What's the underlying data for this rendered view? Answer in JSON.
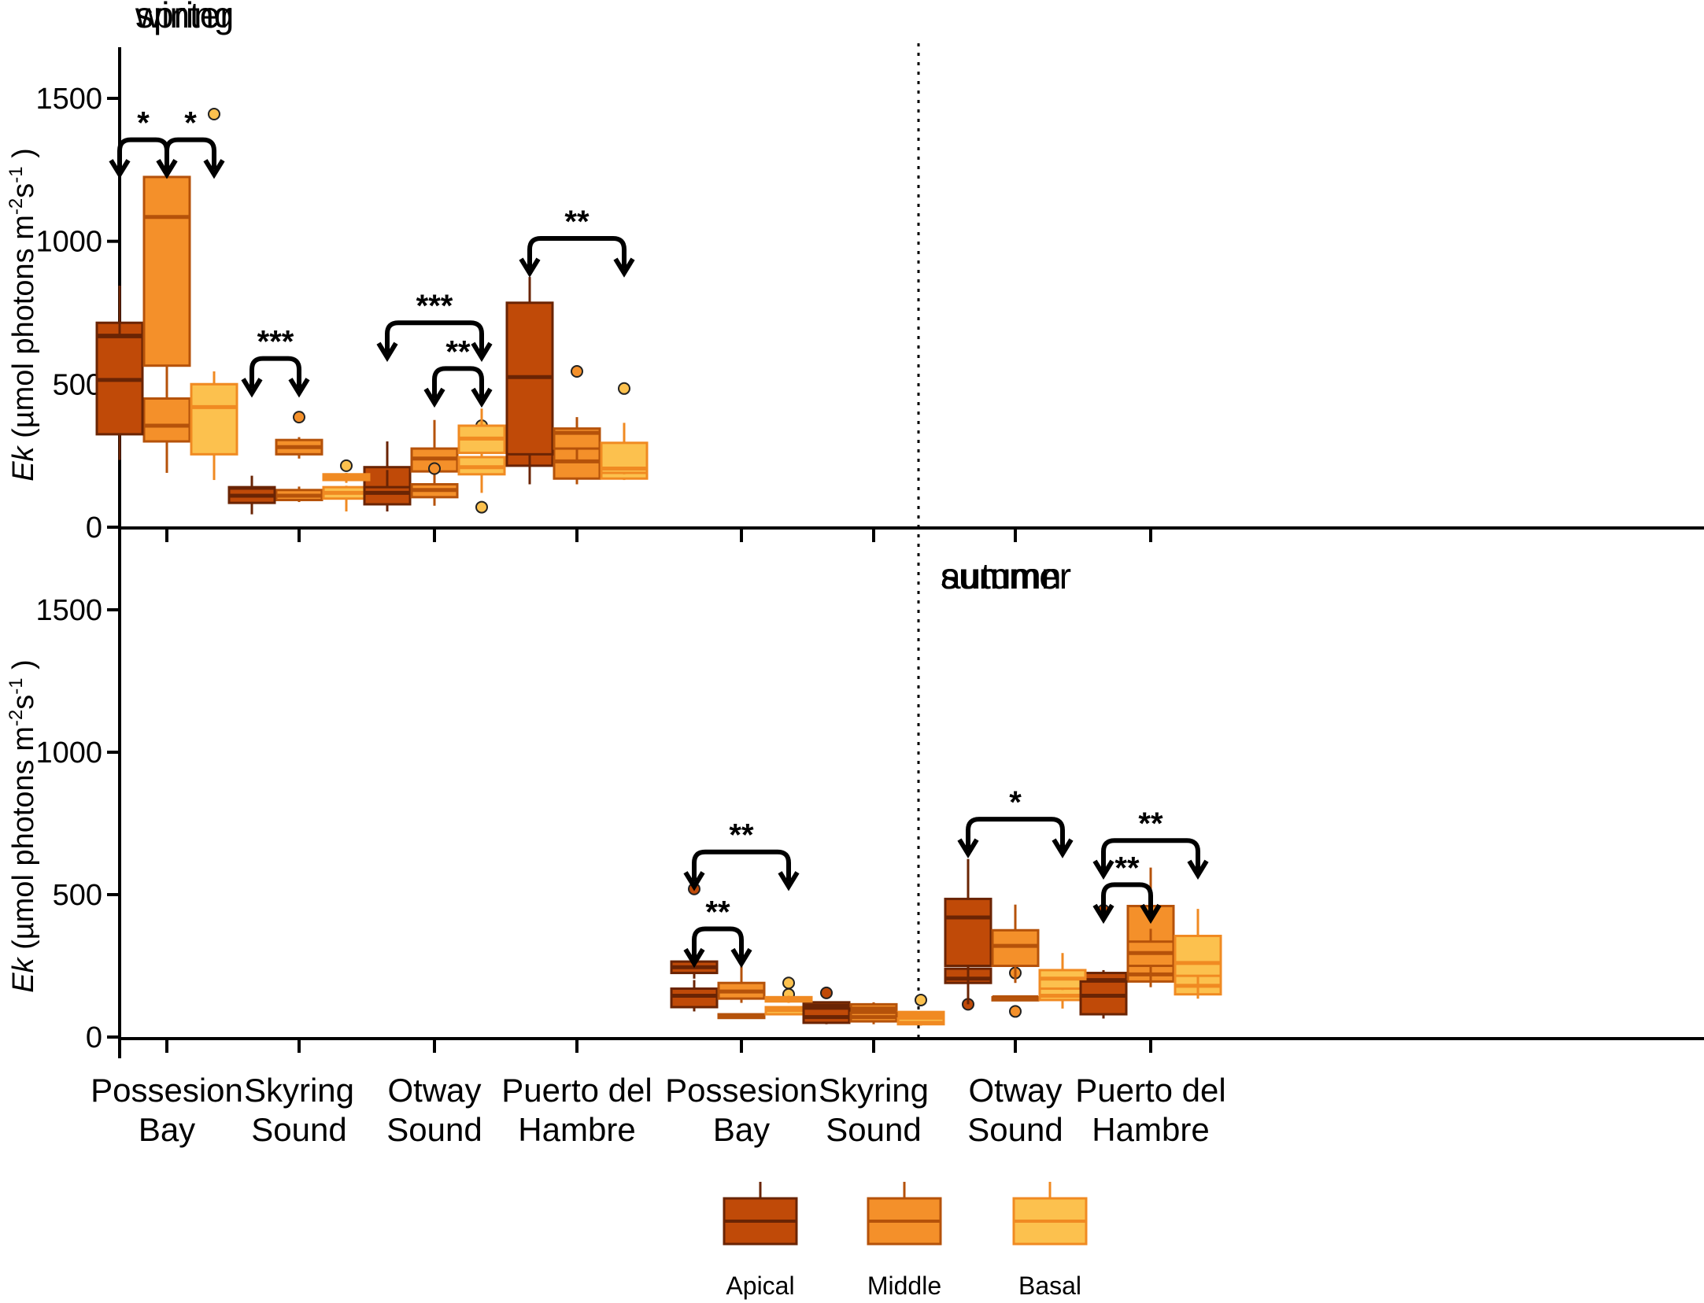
{
  "chart_data": {
    "type": "box",
    "ylabel_italic": "Ek",
    "ylabel_unit": "(µmol photons m",
    "ylabel_sup1": "-2",
    "ylabel_mid": "s",
    "ylabel_sup2": "-1",
    "ylabel_close": ")",
    "ylim": [
      0,
      1650
    ],
    "yticks": [
      0,
      500,
      1000,
      1500
    ],
    "ytick_labels": [
      "0",
      "500",
      "1000",
      "1500"
    ],
    "locations": [
      "Possesion Bay",
      "Skyring Sound",
      "Otway Sound",
      "Puerto del Hambre"
    ],
    "location_lines": [
      [
        "Possesion",
        "Bay"
      ],
      [
        "Skyring",
        "Sound"
      ],
      [
        "Otway",
        "Sound"
      ],
      [
        "Puerto del",
        "Hambre"
      ]
    ],
    "legend": [
      {
        "name": "Apical",
        "color": "#c04a08",
        "stroke": "#6a2404"
      },
      {
        "name": "Middle",
        "color": "#f4902a",
        "stroke": "#b5520a"
      },
      {
        "name": "Basal",
        "color": "#fcc14e",
        "stroke": "#f08a22"
      }
    ],
    "panels": [
      {
        "season": "winter",
        "groups": [
          [
            {
              "min": 355,
              "q1": 485,
              "median": 670,
              "q3": 715,
              "max": 780,
              "outliers": []
            },
            {
              "min": 190,
              "q1": 300,
              "median": 355,
              "q3": 450,
              "max": 555,
              "outliers": []
            },
            {
              "min": 230,
              "q1": 380,
              "median": 480,
              "q3": 500,
              "max": 510,
              "outliers": []
            }
          ],
          [
            {
              "min": 112,
              "q1": 115,
              "median": 125,
              "q3": 140,
              "max": 142,
              "outliers": []
            },
            {
              "min": 88,
              "q1": 95,
              "median": 110,
              "q3": 130,
              "max": 142,
              "outliers": []
            },
            {
              "min": 55,
              "q1": 100,
              "median": 120,
              "q3": 140,
              "max": 145,
              "outliers": []
            }
          ],
          [
            {
              "min": 110,
              "q1": 110,
              "median": 120,
              "q3": 210,
              "max": 300,
              "outliers": []
            },
            {
              "min": 155,
              "q1": 195,
              "median": 240,
              "q3": 275,
              "max": 375,
              "outliers": []
            },
            {
              "min": 120,
              "q1": 185,
              "median": 210,
              "q3": 245,
              "max": 265,
              "outliers": [
                355,
                70
              ]
            }
          ],
          [
            {
              "min": 165,
              "q1": 215,
              "median": 280,
              "q3": 440,
              "max": 470,
              "outliers": []
            },
            {
              "min": 150,
              "q1": 170,
              "median": 230,
              "q3": 315,
              "max": 385,
              "outliers": []
            },
            {
              "min": 165,
              "q1": 170,
              "median": 220,
              "q3": 290,
              "max": 300,
              "outliers": []
            }
          ]
        ],
        "significance": []
      },
      {
        "season": "autumn",
        "groups": [
          [
            {
              "min": 90,
              "q1": 105,
              "median": 145,
              "q3": 170,
              "max": 200,
              "outliers": []
            },
            {
              "min": 65,
              "q1": 67,
              "median": 72,
              "q3": 80,
              "max": 82,
              "outliers": []
            },
            {
              "min": 78,
              "q1": 80,
              "median": 95,
              "q3": 105,
              "max": 108,
              "outliers": [
                150
              ]
            }
          ],
          [
            {
              "min": 92,
              "q1": 95,
              "median": 110,
              "q3": 122,
              "max": 125,
              "outliers": [
                155
              ]
            },
            {
              "min": 88,
              "q1": 92,
              "median": 100,
              "q3": 115,
              "max": 122,
              "outliers": []
            },
            {
              "min": 62,
              "q1": 68,
              "median": 78,
              "q3": 88,
              "max": 90,
              "outliers": [
                130
              ]
            }
          ],
          [
            {
              "min": 190,
              "q1": 190,
              "median": 205,
              "q3": 240,
              "max": 265,
              "outliers": [
                380,
                115
              ]
            },
            {
              "min": 140,
              "q1": 140,
              "median": 140,
              "q3": 140,
              "max": 140,
              "outliers": [
                225,
                90
              ]
            },
            {
              "min": 100,
              "q1": 130,
              "median": 145,
              "q3": 175,
              "max": 205,
              "outliers": []
            }
          ],
          [
            {
              "min": 100,
              "q1": 130,
              "median": 200,
              "q3": 225,
              "max": 235,
              "outliers": [
                445
              ]
            },
            {
              "min": 175,
              "q1": 195,
              "median": 220,
              "q3": 460,
              "max": 595,
              "outliers": []
            },
            {
              "min": 135,
              "q1": 150,
              "median": 180,
              "q3": 275,
              "max": 450,
              "outliers": []
            }
          ]
        ],
        "significance": [
          {
            "group": 0,
            "from": 0,
            "to": 1,
            "label": "**",
            "level": 380
          }
        ]
      },
      {
        "season": "spring",
        "groups": [
          [
            {
              "min": 235,
              "q1": 325,
              "median": 515,
              "q3": 665,
              "max": 845,
              "outliers": []
            },
            {
              "min": 495,
              "q1": 565,
              "median": 1085,
              "q3": 1225,
              "max": 1235,
              "outliers": []
            },
            {
              "min": 165,
              "q1": 255,
              "median": 420,
              "q3": 500,
              "max": 545,
              "outliers": [
                1445
              ]
            }
          ],
          [
            {
              "min": 45,
              "q1": 85,
              "median": 110,
              "q3": 135,
              "max": 180,
              "outliers": []
            },
            {
              "min": 240,
              "q1": 255,
              "median": 280,
              "q3": 305,
              "max": 315,
              "outliers": [
                385
              ]
            },
            {
              "min": 155,
              "q1": 165,
              "median": 175,
              "q3": 185,
              "max": 190,
              "outliers": [
                215
              ]
            }
          ],
          [
            {
              "min": 55,
              "q1": 80,
              "median": 120,
              "q3": 140,
              "max": 200,
              "outliers": []
            },
            {
              "min": 75,
              "q1": 105,
              "median": 130,
              "q3": 150,
              "max": 165,
              "outliers": [
                205
              ]
            },
            {
              "min": 250,
              "q1": 260,
              "median": 310,
              "q3": 355,
              "max": 415,
              "outliers": []
            }
          ],
          [
            {
              "min": 150,
              "q1": 255,
              "median": 525,
              "q3": 785,
              "max": 875,
              "outliers": []
            },
            {
              "min": 225,
              "q1": 275,
              "median": 330,
              "q3": 345,
              "max": 350,
              "outliers": [
                545
              ]
            },
            {
              "min": 185,
              "q1": 190,
              "median": 205,
              "q3": 295,
              "max": 365,
              "outliers": [
                485
              ]
            }
          ]
        ],
        "significance": [
          {
            "group": 0,
            "from": 0,
            "to": 1,
            "label": "*",
            "level": 1355
          },
          {
            "group": 0,
            "from": 1,
            "to": 2,
            "label": "*",
            "level": 1355
          },
          {
            "group": 1,
            "from": 0,
            "to": 1,
            "label": "***",
            "level": 590
          },
          {
            "group": 2,
            "from": 0,
            "to": 2,
            "label": "***",
            "level": 715
          },
          {
            "group": 2,
            "from": 1,
            "to": 2,
            "label": "**",
            "level": 555
          },
          {
            "group": 3,
            "from": 0,
            "to": 2,
            "label": "**",
            "level": 1010
          }
        ]
      },
      {
        "season": "summer",
        "groups": [
          [
            {
              "min": 205,
              "q1": 225,
              "median": 245,
              "q3": 265,
              "max": 280,
              "outliers": [
                520
              ]
            },
            {
              "min": 120,
              "q1": 135,
              "median": 160,
              "q3": 190,
              "max": 260,
              "outliers": []
            },
            {
              "min": 120,
              "q1": 125,
              "median": 130,
              "q3": 140,
              "max": 145,
              "outliers": [
                190
              ]
            }
          ],
          [
            {
              "min": 45,
              "q1": 50,
              "median": 70,
              "q3": 100,
              "max": 110,
              "outliers": []
            },
            {
              "min": 45,
              "q1": 55,
              "median": 70,
              "q3": 85,
              "max": 95,
              "outliers": []
            },
            {
              "min": 40,
              "q1": 45,
              "median": 50,
              "q3": 65,
              "max": 85,
              "outliers": []
            }
          ],
          [
            {
              "min": 115,
              "q1": 250,
              "median": 420,
              "q3": 485,
              "max": 625,
              "outliers": []
            },
            {
              "min": 190,
              "q1": 250,
              "median": 320,
              "q3": 375,
              "max": 465,
              "outliers": []
            },
            {
              "min": 165,
              "q1": 170,
              "median": 205,
              "q3": 235,
              "max": 295,
              "outliers": []
            }
          ],
          [
            {
              "min": 65,
              "q1": 80,
              "median": 145,
              "q3": 195,
              "max": 195,
              "outliers": []
            },
            {
              "min": 195,
              "q1": 250,
              "median": 295,
              "q3": 335,
              "max": 380,
              "outliers": []
            },
            {
              "min": 135,
              "q1": 215,
              "median": 260,
              "q3": 355,
              "max": 435,
              "outliers": []
            }
          ]
        ],
        "significance": [
          {
            "group": 0,
            "from": 0,
            "to": 2,
            "label": "**",
            "level": 650
          },
          {
            "group": 2,
            "from": 0,
            "to": 2,
            "label": "*",
            "level": 765
          },
          {
            "group": 3,
            "from": 0,
            "to": 2,
            "label": "**",
            "level": 690
          },
          {
            "group": 3,
            "from": 0,
            "to": 1,
            "label": "**",
            "level": 535
          }
        ]
      }
    ]
  }
}
